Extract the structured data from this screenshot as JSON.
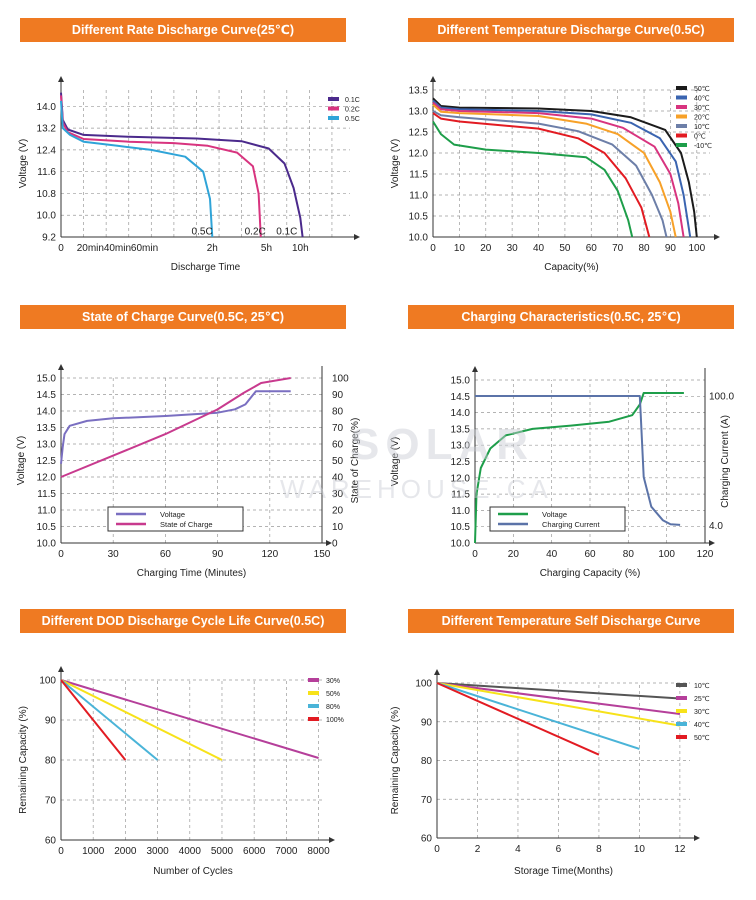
{
  "chart_data": [
    {
      "type": "line",
      "title": "Different Rate Discharge Curve(25℃)",
      "xlabel": "Discharge Time",
      "ylabel": "Voltage (V)",
      "ylim": [
        9.2,
        14.6
      ],
      "yticks": [
        9.2,
        10.0,
        10.8,
        11.6,
        12.4,
        13.2,
        14.0
      ],
      "ytick_labels": [
        "9.2",
        "10.0",
        "10.8",
        "11.6",
        "12.4",
        "13.2",
        "14.0"
      ],
      "xlim": [
        0,
        12.8
      ],
      "xticks": [
        0,
        1,
        2,
        3,
        4,
        5,
        6,
        7,
        8,
        9,
        10,
        11,
        12
      ],
      "xtick_labels": [
        {
          "x": 0,
          "label": "0"
        },
        {
          "x": 1.3,
          "label": "20min"
        },
        {
          "x": 2.5,
          "label": "40min"
        },
        {
          "x": 3.7,
          "label": "60min"
        },
        {
          "x": 6.7,
          "label": "2h"
        },
        {
          "x": 9.1,
          "label": "5h"
        },
        {
          "x": 10.6,
          "label": "10h"
        }
      ],
      "legend_position": "top-right",
      "grid": true,
      "annotations": [
        {
          "x": 6.25,
          "y": 9.3,
          "text": "0.5C"
        },
        {
          "x": 8.6,
          "y": 9.3,
          "text": "0.2C"
        },
        {
          "x": 10.0,
          "y": 9.3,
          "text": "0.1C"
        }
      ],
      "series": [
        {
          "name": "0.1C",
          "color": "#4b2a8c",
          "points": [
            [
              0,
              14.5
            ],
            [
              0.08,
              13.5
            ],
            [
              0.3,
              13.15
            ],
            [
              1,
              12.95
            ],
            [
              3,
              12.88
            ],
            [
              6,
              12.82
            ],
            [
              8,
              12.72
            ],
            [
              9.2,
              12.45
            ],
            [
              9.9,
              11.9
            ],
            [
              10.3,
              11.0
            ],
            [
              10.6,
              9.9
            ],
            [
              10.7,
              9.2
            ]
          ]
        },
        {
          "name": "0.2C",
          "color": "#d8347f",
          "points": [
            [
              0,
              14.4
            ],
            [
              0.08,
              13.4
            ],
            [
              0.3,
              13.05
            ],
            [
              1,
              12.8
            ],
            [
              3,
              12.7
            ],
            [
              5,
              12.65
            ],
            [
              6.5,
              12.55
            ],
            [
              7.8,
              12.3
            ],
            [
              8.5,
              11.8
            ],
            [
              8.75,
              10.8
            ],
            [
              8.85,
              9.2
            ]
          ]
        },
        {
          "name": "0.5C",
          "color": "#2fa4d8",
          "points": [
            [
              0,
              14.2
            ],
            [
              0.08,
              13.2
            ],
            [
              0.4,
              12.95
            ],
            [
              1,
              12.7
            ],
            [
              2.5,
              12.55
            ],
            [
              4,
              12.4
            ],
            [
              5.5,
              12.15
            ],
            [
              6.3,
              11.6
            ],
            [
              6.6,
              10.6
            ],
            [
              6.7,
              9.2
            ]
          ]
        }
      ]
    },
    {
      "type": "line",
      "title": "Different Temperature Discharge Curve(0.5C)",
      "xlabel": "Capacity(%)",
      "ylabel": "Voltage (V)",
      "ylim": [
        10.0,
        13.5
      ],
      "yticks": [
        10.0,
        10.5,
        11.0,
        11.5,
        12.0,
        12.5,
        13.0,
        13.5
      ],
      "xlim": [
        0,
        105
      ],
      "xticks": [
        0,
        10,
        20,
        30,
        40,
        50,
        60,
        70,
        80,
        90,
        100
      ],
      "legend_position": "top-right",
      "grid": true,
      "series": [
        {
          "name": "50℃",
          "color": "#1b1b1b",
          "points": [
            [
              0,
              13.3
            ],
            [
              3,
              13.12
            ],
            [
              10,
              13.08
            ],
            [
              40,
              13.06
            ],
            [
              60,
              13.0
            ],
            [
              75,
              12.85
            ],
            [
              88,
              12.55
            ],
            [
              94,
              12.0
            ],
            [
              97,
              11.3
            ],
            [
              99,
              10.6
            ],
            [
              100,
              10.0
            ]
          ]
        },
        {
          "name": "40℃",
          "color": "#3a64b0",
          "points": [
            [
              0,
              13.25
            ],
            [
              3,
              13.08
            ],
            [
              10,
              13.04
            ],
            [
              40,
              13.0
            ],
            [
              60,
              12.92
            ],
            [
              75,
              12.72
            ],
            [
              86,
              12.35
            ],
            [
              92,
              11.8
            ],
            [
              95,
              11.0
            ],
            [
              97.5,
              10.0
            ]
          ]
        },
        {
          "name": "30℃",
          "color": "#d8347f",
          "points": [
            [
              0,
              13.2
            ],
            [
              3,
              13.04
            ],
            [
              10,
              13.0
            ],
            [
              40,
              12.95
            ],
            [
              60,
              12.82
            ],
            [
              72,
              12.6
            ],
            [
              84,
              12.15
            ],
            [
              90,
              11.5
            ],
            [
              93,
              10.8
            ],
            [
              95,
              10.0
            ]
          ]
        },
        {
          "name": "20℃",
          "color": "#f7a128",
          "points": [
            [
              0,
              13.15
            ],
            [
              3,
              12.98
            ],
            [
              10,
              12.95
            ],
            [
              40,
              12.88
            ],
            [
              58,
              12.7
            ],
            [
              70,
              12.45
            ],
            [
              80,
              12.0
            ],
            [
              86,
              11.3
            ],
            [
              90,
              10.6
            ],
            [
              92,
              10.0
            ]
          ]
        },
        {
          "name": "10℃",
          "color": "#6d7fa8",
          "points": [
            [
              0,
              13.0
            ],
            [
              3,
              12.9
            ],
            [
              10,
              12.85
            ],
            [
              40,
              12.7
            ],
            [
              55,
              12.52
            ],
            [
              68,
              12.2
            ],
            [
              77,
              11.7
            ],
            [
              83,
              11.0
            ],
            [
              87,
              10.4
            ],
            [
              88.5,
              10.0
            ]
          ]
        },
        {
          "name": "0℃",
          "color": "#e21b22",
          "points": [
            [
              0,
              12.95
            ],
            [
              3,
              12.82
            ],
            [
              10,
              12.75
            ],
            [
              40,
              12.58
            ],
            [
              55,
              12.35
            ],
            [
              65,
              12.0
            ],
            [
              73,
              11.4
            ],
            [
              79,
              10.7
            ],
            [
              82,
              10.0
            ]
          ]
        },
        {
          "name": "-10℃",
          "color": "#1e9e4a",
          "points": [
            [
              0,
              12.75
            ],
            [
              3,
              12.45
            ],
            [
              8,
              12.2
            ],
            [
              20,
              12.08
            ],
            [
              40,
              12.0
            ],
            [
              58,
              11.9
            ],
            [
              65,
              11.6
            ],
            [
              70,
              11.1
            ],
            [
              74,
              10.4
            ],
            [
              75.5,
              10.0
            ]
          ]
        }
      ]
    },
    {
      "type": "line",
      "title": "State of Charge Curve(0.5C, 25℃)",
      "xlabel": "Charging Time (Minutes)",
      "ylabel": "Voltage (V)",
      "y2label": "State of Charge(%)",
      "ylim": [
        10.0,
        15.0
      ],
      "yticks": [
        10.0,
        10.5,
        11.0,
        11.5,
        12.0,
        12.5,
        13.0,
        13.5,
        14.0,
        14.5,
        15.0
      ],
      "y2lim": [
        0,
        100
      ],
      "y2ticks": [
        0,
        10,
        20,
        30,
        40,
        50,
        60,
        70,
        80,
        90,
        100
      ],
      "xlim": [
        0,
        150
      ],
      "xticks": [
        0,
        30,
        60,
        90,
        120,
        150
      ],
      "legend_position": "bottom-center",
      "grid": true,
      "series": [
        {
          "name": "Voltage",
          "color": "#7a6fc1",
          "axis": "left",
          "points": [
            [
              0,
              12.4
            ],
            [
              1,
              12.9
            ],
            [
              2,
              13.3
            ],
            [
              5,
              13.55
            ],
            [
              15,
              13.7
            ],
            [
              30,
              13.78
            ],
            [
              60,
              13.85
            ],
            [
              90,
              13.95
            ],
            [
              100,
              14.05
            ],
            [
              106,
              14.2
            ],
            [
              112,
              14.6
            ],
            [
              132,
              14.6
            ]
          ]
        },
        {
          "name": "State of Charge",
          "color": "#c83a8e",
          "axis": "right",
          "points": [
            [
              0,
              40
            ],
            [
              30,
              53
            ],
            [
              60,
              66
            ],
            [
              90,
              81
            ],
            [
              105,
              91
            ],
            [
              115,
              97
            ],
            [
              132,
              100
            ]
          ]
        }
      ]
    },
    {
      "type": "line",
      "title": "Charging Characteristics(0.5C, 25℃)",
      "xlabel": "Charging Capacity (%)",
      "ylabel": "Voltage (V)",
      "y2label": "Charging Current (A)",
      "ylim": [
        10.0,
        15.0
      ],
      "yticks": [
        10.0,
        10.5,
        11.0,
        11.5,
        12.0,
        12.5,
        13.0,
        13.5,
        14.0,
        14.5,
        15.0
      ],
      "y2_ticks": [
        {
          "value": 100.0,
          "label": "100.0"
        },
        {
          "value": 4.0,
          "label": "4.0"
        }
      ],
      "xlim": [
        0,
        120
      ],
      "xticks": [
        0,
        20,
        40,
        60,
        80,
        100,
        120
      ],
      "legend_position": "bottom-center",
      "grid": true,
      "series": [
        {
          "name": "Voltage",
          "color": "#1e9e4a",
          "points": [
            [
              0,
              10.0
            ],
            [
              0.8,
              11.5
            ],
            [
              3,
              12.3
            ],
            [
              8,
              12.9
            ],
            [
              16,
              13.3
            ],
            [
              30,
              13.5
            ],
            [
              50,
              13.6
            ],
            [
              70,
              13.72
            ],
            [
              82,
              13.92
            ],
            [
              86,
              14.25
            ],
            [
              88,
              14.6
            ],
            [
              109,
              14.6
            ]
          ]
        },
        {
          "name": "Charging Current",
          "color": "#5b73a8",
          "points": [
            [
              0,
              100
            ],
            [
              86,
              100
            ],
            [
              86.5,
              85
            ],
            [
              88,
              40
            ],
            [
              92,
              18
            ],
            [
              98,
              8
            ],
            [
              102,
              5
            ],
            [
              107,
              4.5
            ]
          ]
        }
      ]
    },
    {
      "type": "line",
      "title": "Different DOD Discharge Cycle Life Curve(0.5C)",
      "xlabel": "Number of Cycles",
      "ylabel": "Remaining Capacity (%)",
      "ylim": [
        60,
        100
      ],
      "yticks": [
        60,
        70,
        80,
        90,
        100
      ],
      "xlim": [
        0,
        8200
      ],
      "xticks": [
        0,
        1000,
        2000,
        3000,
        4000,
        5000,
        6000,
        7000,
        8000
      ],
      "legend_position": "top-right",
      "grid": true,
      "series": [
        {
          "name": "30%",
          "color": "#b53f9a",
          "points": [
            [
              0,
              100
            ],
            [
              8000,
              80.5
            ]
          ]
        },
        {
          "name": "50%",
          "color": "#f7e21a",
          "points": [
            [
              0,
              100
            ],
            [
              5000,
              80
            ]
          ]
        },
        {
          "name": "80%",
          "color": "#4ab4d8",
          "points": [
            [
              0,
              100
            ],
            [
              3000,
              80
            ]
          ]
        },
        {
          "name": "100%",
          "color": "#e21b22",
          "points": [
            [
              0,
              100
            ],
            [
              2000,
              80
            ]
          ]
        }
      ]
    },
    {
      "type": "line",
      "title": "Different Temperature Self Discharge Curve",
      "xlabel": "Storage Time(Months)",
      "ylabel": "Remaining Capacity (%)",
      "ylim": [
        60,
        100
      ],
      "yticks": [
        60,
        70,
        80,
        90,
        100
      ],
      "xlim": [
        0,
        12.5
      ],
      "xticks": [
        0,
        2,
        4,
        6,
        8,
        10,
        12
      ],
      "legend_position": "top-right",
      "grid": true,
      "series": [
        {
          "name": "10℃",
          "color": "#555555",
          "points": [
            [
              0,
              100
            ],
            [
              12,
              96
            ]
          ]
        },
        {
          "name": "25℃",
          "color": "#b53f9a",
          "points": [
            [
              0,
              100
            ],
            [
              12,
              92
            ]
          ]
        },
        {
          "name": "30℃",
          "color": "#f7e21a",
          "points": [
            [
              0,
              100
            ],
            [
              12,
              89
            ]
          ]
        },
        {
          "name": "40℃",
          "color": "#4ab4d8",
          "points": [
            [
              0,
              100
            ],
            [
              10,
              83
            ]
          ]
        },
        {
          "name": "50℃",
          "color": "#e21b22",
          "points": [
            [
              0,
              100
            ],
            [
              8,
              81.5
            ]
          ]
        }
      ]
    }
  ],
  "watermark": {
    "line1": "SOLAR",
    "line2": "WAREHOUSE.CA"
  }
}
